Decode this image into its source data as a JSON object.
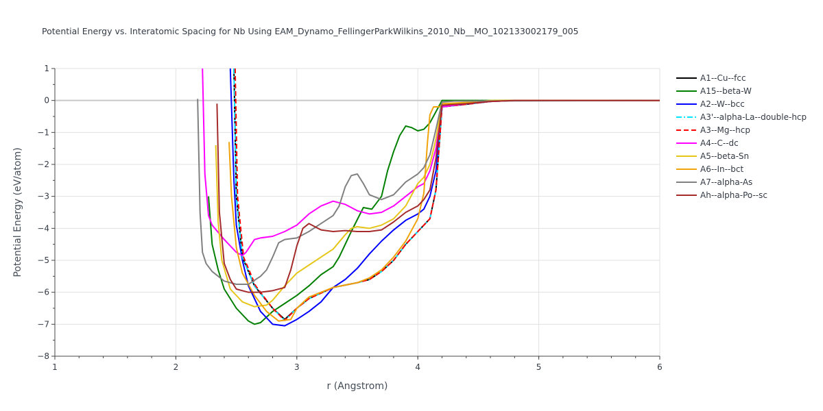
{
  "chart_data": {
    "type": "line",
    "title": "Potential Energy vs. Interatomic Spacing for Nb Using EAM_Dynamo_FellingerParkWilkins_2010_Nb__MO_102133002179_005",
    "xlabel": "r (Angstrom)",
    "ylabel": "Potential Energy (eV/atom)",
    "xlim": [
      1,
      6
    ],
    "ylim": [
      -8,
      1
    ],
    "xticks": [
      "1",
      "2",
      "3",
      "4",
      "5",
      "6"
    ],
    "yticks": [
      "1",
      "0",
      "−1",
      "−2",
      "−3",
      "−4",
      "−5",
      "−6",
      "−7",
      "−8"
    ],
    "grid": true,
    "legend_position": "right",
    "series": [
      {
        "name": "A1--Cu--fcc",
        "color": "#000000",
        "dash": "solid",
        "points": [
          [
            2.48,
            1.0
          ],
          [
            2.5,
            -3.0
          ],
          [
            2.55,
            -4.9
          ],
          [
            2.65,
            -5.8
          ],
          [
            2.8,
            -6.5
          ],
          [
            2.9,
            -6.85
          ],
          [
            3.0,
            -6.5
          ],
          [
            3.1,
            -6.2
          ],
          [
            3.3,
            -5.85
          ],
          [
            3.5,
            -5.7
          ],
          [
            3.6,
            -5.6
          ],
          [
            3.7,
            -5.35
          ],
          [
            3.8,
            -5.0
          ],
          [
            3.9,
            -4.5
          ],
          [
            4.0,
            -4.1
          ],
          [
            4.1,
            -3.7
          ],
          [
            4.15,
            -2.8
          ],
          [
            4.2,
            -0.2
          ],
          [
            4.4,
            -0.12
          ],
          [
            4.6,
            -0.03
          ],
          [
            4.8,
            0.0
          ],
          [
            6.0,
            0.0
          ]
        ]
      },
      {
        "name": "A15--beta-W",
        "color": "#008000",
        "dash": "solid",
        "points": [
          [
            2.27,
            -3.0
          ],
          [
            2.3,
            -4.5
          ],
          [
            2.35,
            -5.3
          ],
          [
            2.4,
            -5.9
          ],
          [
            2.5,
            -6.5
          ],
          [
            2.6,
            -6.9
          ],
          [
            2.65,
            -7.0
          ],
          [
            2.7,
            -6.95
          ],
          [
            2.8,
            -6.6
          ],
          [
            2.9,
            -6.35
          ],
          [
            3.0,
            -6.1
          ],
          [
            3.1,
            -5.8
          ],
          [
            3.2,
            -5.45
          ],
          [
            3.3,
            -5.2
          ],
          [
            3.35,
            -4.9
          ],
          [
            3.45,
            -4.1
          ],
          [
            3.55,
            -3.35
          ],
          [
            3.62,
            -3.4
          ],
          [
            3.7,
            -3.0
          ],
          [
            3.75,
            -2.2
          ],
          [
            3.8,
            -1.6
          ],
          [
            3.85,
            -1.1
          ],
          [
            3.9,
            -0.8
          ],
          [
            3.95,
            -0.85
          ],
          [
            4.0,
            -0.95
          ],
          [
            4.05,
            -0.9
          ],
          [
            4.1,
            -0.7
          ],
          [
            4.2,
            0.0
          ],
          [
            6.0,
            0.0
          ]
        ]
      },
      {
        "name": "A2--W--bcc",
        "color": "#0000ff",
        "dash": "solid",
        "points": [
          [
            2.45,
            1.0
          ],
          [
            2.48,
            -2.5
          ],
          [
            2.5,
            -3.9
          ],
          [
            2.55,
            -5.0
          ],
          [
            2.6,
            -5.8
          ],
          [
            2.7,
            -6.6
          ],
          [
            2.8,
            -7.0
          ],
          [
            2.9,
            -7.05
          ],
          [
            3.0,
            -6.85
          ],
          [
            3.1,
            -6.6
          ],
          [
            3.2,
            -6.3
          ],
          [
            3.3,
            -5.85
          ],
          [
            3.4,
            -5.6
          ],
          [
            3.5,
            -5.25
          ],
          [
            3.6,
            -4.8
          ],
          [
            3.7,
            -4.4
          ],
          [
            3.8,
            -4.05
          ],
          [
            3.9,
            -3.75
          ],
          [
            4.0,
            -3.55
          ],
          [
            4.05,
            -3.4
          ],
          [
            4.1,
            -3.0
          ],
          [
            4.15,
            -2.2
          ],
          [
            4.2,
            -0.2
          ],
          [
            4.4,
            -0.1
          ],
          [
            4.6,
            -0.03
          ],
          [
            4.8,
            0.0
          ],
          [
            6.0,
            0.0
          ]
        ]
      },
      {
        "name": "A3'--alpha-La--double-hcp",
        "color": "#00e5ff",
        "dash": "dashdot",
        "points": [
          [
            2.48,
            1.0
          ],
          [
            2.5,
            -3.0
          ],
          [
            2.55,
            -4.9
          ],
          [
            2.65,
            -5.8
          ],
          [
            2.8,
            -6.5
          ],
          [
            2.9,
            -6.88
          ],
          [
            3.0,
            -6.5
          ],
          [
            3.1,
            -6.2
          ],
          [
            3.3,
            -5.85
          ],
          [
            3.5,
            -5.7
          ],
          [
            3.6,
            -5.6
          ],
          [
            3.7,
            -5.35
          ],
          [
            3.8,
            -5.0
          ],
          [
            3.9,
            -4.5
          ],
          [
            4.0,
            -4.1
          ],
          [
            4.1,
            -3.7
          ],
          [
            4.15,
            -2.8
          ],
          [
            4.2,
            -0.2
          ],
          [
            4.4,
            -0.12
          ],
          [
            4.6,
            -0.03
          ],
          [
            4.8,
            0.0
          ],
          [
            6.0,
            0.0
          ]
        ]
      },
      {
        "name": "A3--Mg--hcp",
        "color": "#ff0000",
        "dash": "dash",
        "points": [
          [
            2.49,
            1.0
          ],
          [
            2.51,
            -3.0
          ],
          [
            2.56,
            -4.9
          ],
          [
            2.66,
            -5.8
          ],
          [
            2.8,
            -6.5
          ],
          [
            2.9,
            -6.88
          ],
          [
            3.0,
            -6.5
          ],
          [
            3.1,
            -6.2
          ],
          [
            3.3,
            -5.85
          ],
          [
            3.5,
            -5.7
          ],
          [
            3.6,
            -5.6
          ],
          [
            3.7,
            -5.35
          ],
          [
            3.8,
            -5.0
          ],
          [
            3.9,
            -4.5
          ],
          [
            4.0,
            -4.1
          ],
          [
            4.1,
            -3.7
          ],
          [
            4.15,
            -2.8
          ],
          [
            4.2,
            -0.2
          ],
          [
            4.4,
            -0.12
          ],
          [
            4.6,
            -0.03
          ],
          [
            4.8,
            0.0
          ],
          [
            6.0,
            0.0
          ]
        ]
      },
      {
        "name": "A4--C--dc",
        "color": "#ff00ff",
        "dash": "solid",
        "points": [
          [
            2.22,
            1.0
          ],
          [
            2.24,
            -2.3
          ],
          [
            2.27,
            -3.6
          ],
          [
            2.3,
            -3.9
          ],
          [
            2.4,
            -4.35
          ],
          [
            2.5,
            -4.75
          ],
          [
            2.55,
            -4.85
          ],
          [
            2.58,
            -4.75
          ],
          [
            2.65,
            -4.35
          ],
          [
            2.7,
            -4.3
          ],
          [
            2.8,
            -4.25
          ],
          [
            2.9,
            -4.1
          ],
          [
            3.0,
            -3.9
          ],
          [
            3.1,
            -3.55
          ],
          [
            3.2,
            -3.3
          ],
          [
            3.3,
            -3.15
          ],
          [
            3.4,
            -3.25
          ],
          [
            3.5,
            -3.45
          ],
          [
            3.6,
            -3.55
          ],
          [
            3.7,
            -3.5
          ],
          [
            3.8,
            -3.3
          ],
          [
            3.9,
            -3.0
          ],
          [
            4.0,
            -2.7
          ],
          [
            4.05,
            -2.6
          ],
          [
            4.1,
            -2.2
          ],
          [
            4.15,
            -1.5
          ],
          [
            4.2,
            -0.2
          ],
          [
            4.4,
            -0.1
          ],
          [
            4.6,
            -0.03
          ],
          [
            4.8,
            0.0
          ],
          [
            6.0,
            0.0
          ]
        ]
      },
      {
        "name": "A5--beta-Sn",
        "color": "#e6c619",
        "dash": "solid",
        "points": [
          [
            2.33,
            -1.4
          ],
          [
            2.35,
            -3.8
          ],
          [
            2.38,
            -5.0
          ],
          [
            2.45,
            -5.9
          ],
          [
            2.55,
            -6.3
          ],
          [
            2.65,
            -6.45
          ],
          [
            2.75,
            -6.4
          ],
          [
            2.8,
            -6.25
          ],
          [
            2.9,
            -5.8
          ],
          [
            3.0,
            -5.4
          ],
          [
            3.1,
            -5.15
          ],
          [
            3.2,
            -4.9
          ],
          [
            3.3,
            -4.65
          ],
          [
            3.4,
            -4.2
          ],
          [
            3.45,
            -4.0
          ],
          [
            3.5,
            -3.95
          ],
          [
            3.6,
            -4.0
          ],
          [
            3.7,
            -3.9
          ],
          [
            3.8,
            -3.7
          ],
          [
            3.9,
            -3.3
          ],
          [
            4.0,
            -2.6
          ],
          [
            4.05,
            -2.4
          ],
          [
            4.1,
            -2.0
          ],
          [
            4.15,
            -1.2
          ],
          [
            4.2,
            -0.1
          ],
          [
            4.4,
            -0.06
          ],
          [
            4.6,
            0.0
          ],
          [
            6.0,
            0.0
          ]
        ]
      },
      {
        "name": "A6--In--bct",
        "color": "#f0a30a",
        "dash": "solid",
        "points": [
          [
            2.44,
            -1.3
          ],
          [
            2.46,
            -3.0
          ],
          [
            2.5,
            -4.6
          ],
          [
            2.55,
            -5.4
          ],
          [
            2.65,
            -6.1
          ],
          [
            2.75,
            -6.6
          ],
          [
            2.85,
            -6.9
          ],
          [
            2.95,
            -6.85
          ],
          [
            3.0,
            -6.5
          ],
          [
            3.1,
            -6.15
          ],
          [
            3.3,
            -5.85
          ],
          [
            3.5,
            -5.7
          ],
          [
            3.6,
            -5.55
          ],
          [
            3.7,
            -5.3
          ],
          [
            3.8,
            -4.9
          ],
          [
            3.9,
            -4.4
          ],
          [
            4.0,
            -3.7
          ],
          [
            4.05,
            -2.9
          ],
          [
            4.08,
            -1.3
          ],
          [
            4.1,
            -0.45
          ],
          [
            4.13,
            -0.2
          ],
          [
            4.18,
            -0.2
          ],
          [
            4.2,
            -0.1
          ],
          [
            4.4,
            -0.08
          ],
          [
            4.6,
            -0.02
          ],
          [
            4.8,
            0.0
          ],
          [
            6.0,
            0.0
          ]
        ]
      },
      {
        "name": "A7--alpha-As",
        "color": "#808080",
        "dash": "solid",
        "points": [
          [
            2.18,
            0.05
          ],
          [
            2.2,
            -3.5
          ],
          [
            2.22,
            -4.75
          ],
          [
            2.25,
            -5.1
          ],
          [
            2.3,
            -5.35
          ],
          [
            2.4,
            -5.65
          ],
          [
            2.5,
            -5.75
          ],
          [
            2.6,
            -5.75
          ],
          [
            2.7,
            -5.5
          ],
          [
            2.75,
            -5.3
          ],
          [
            2.8,
            -4.9
          ],
          [
            2.85,
            -4.45
          ],
          [
            2.9,
            -4.35
          ],
          [
            3.0,
            -4.3
          ],
          [
            3.1,
            -4.1
          ],
          [
            3.2,
            -3.85
          ],
          [
            3.3,
            -3.6
          ],
          [
            3.35,
            -3.3
          ],
          [
            3.4,
            -2.7
          ],
          [
            3.45,
            -2.35
          ],
          [
            3.5,
            -2.3
          ],
          [
            3.55,
            -2.6
          ],
          [
            3.6,
            -2.95
          ],
          [
            3.7,
            -3.1
          ],
          [
            3.8,
            -2.95
          ],
          [
            3.9,
            -2.55
          ],
          [
            4.0,
            -2.3
          ],
          [
            4.05,
            -2.1
          ],
          [
            4.1,
            -1.7
          ],
          [
            4.15,
            -0.9
          ],
          [
            4.2,
            -0.05
          ],
          [
            4.3,
            -0.02
          ],
          [
            6.0,
            0.0
          ]
        ]
      },
      {
        "name": "Ah--alpha-Po--sc",
        "color": "#a52a2a",
        "dash": "solid",
        "points": [
          [
            2.34,
            -0.1
          ],
          [
            2.36,
            -3.5
          ],
          [
            2.4,
            -5.1
          ],
          [
            2.45,
            -5.6
          ],
          [
            2.5,
            -5.9
          ],
          [
            2.6,
            -6.0
          ],
          [
            2.7,
            -6.0
          ],
          [
            2.8,
            -5.95
          ],
          [
            2.9,
            -5.85
          ],
          [
            2.95,
            -5.3
          ],
          [
            3.0,
            -4.55
          ],
          [
            3.05,
            -4.0
          ],
          [
            3.1,
            -3.85
          ],
          [
            3.2,
            -4.05
          ],
          [
            3.3,
            -4.1
          ],
          [
            3.4,
            -4.07
          ],
          [
            3.5,
            -4.1
          ],
          [
            3.6,
            -4.1
          ],
          [
            3.7,
            -4.05
          ],
          [
            3.8,
            -3.8
          ],
          [
            3.9,
            -3.5
          ],
          [
            4.0,
            -3.3
          ],
          [
            4.05,
            -3.1
          ],
          [
            4.1,
            -2.8
          ],
          [
            4.15,
            -1.8
          ],
          [
            4.2,
            -0.15
          ],
          [
            4.4,
            -0.1
          ],
          [
            4.6,
            -0.03
          ],
          [
            4.8,
            0.0
          ],
          [
            6.0,
            0.0
          ]
        ]
      }
    ]
  }
}
